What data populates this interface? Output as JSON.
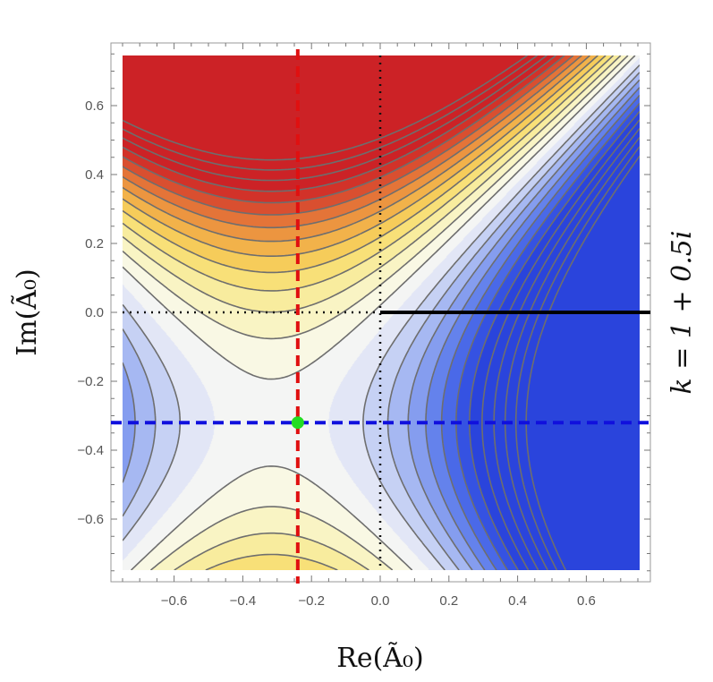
{
  "chart_data": {
    "type": "contour",
    "xlabel": "Re(Ã₀)",
    "ylabel": "Im(Ã₀)",
    "side_label": "k = 1 + 0.5i",
    "xlim": [
      -0.77,
      0.77
    ],
    "ylim": [
      -0.77,
      0.77
    ],
    "x_ticks": [
      -0.6,
      -0.4,
      -0.2,
      0.0,
      0.2,
      0.4,
      0.6
    ],
    "x_tick_labels": [
      "−0.6",
      "−0.4",
      "−0.2",
      "0.0",
      "0.2",
      "0.4",
      "0.6"
    ],
    "y_ticks": [
      -0.6,
      -0.4,
      -0.2,
      0.0,
      0.2,
      0.4,
      0.6
    ],
    "y_tick_labels": [
      "−0.6",
      "−0.4",
      "−0.2",
      "0.0",
      "0.2",
      "0.4",
      "0.6"
    ],
    "saddle_point": [
      -0.24,
      -0.32
    ],
    "saddle_color": "#22dd22",
    "red_dashed_line_x": -0.24,
    "blue_dashed_line_y": -0.32,
    "black_dotted_line_x": 0.0,
    "black_dotted_line_y": 0.0,
    "branch_cut": {
      "y": 0.0,
      "x_from": 0.0,
      "x_to": 0.77
    },
    "contour_level_spacing": 0.02,
    "colors": {
      "red_dashed": "#e01010",
      "blue_dashed": "#1010dd",
      "contour_line": "#6e6e6e",
      "negative_scale": [
        "#f4f5f4",
        "#e2e6f6",
        "#c6d1f4",
        "#a6b8f2",
        "#859def",
        "#6482ec",
        "#4a69e8",
        "#3552e2",
        "#2a44dc"
      ],
      "positive_scale": [
        "#f4f5f4",
        "#f9f8e4",
        "#f9f4c4",
        "#f8ec9e",
        "#f8e078",
        "#f6cc5a",
        "#f2b24a",
        "#ec9540",
        "#e47438",
        "#d94f30",
        "#d23229",
        "#cc2226"
      ]
    }
  }
}
